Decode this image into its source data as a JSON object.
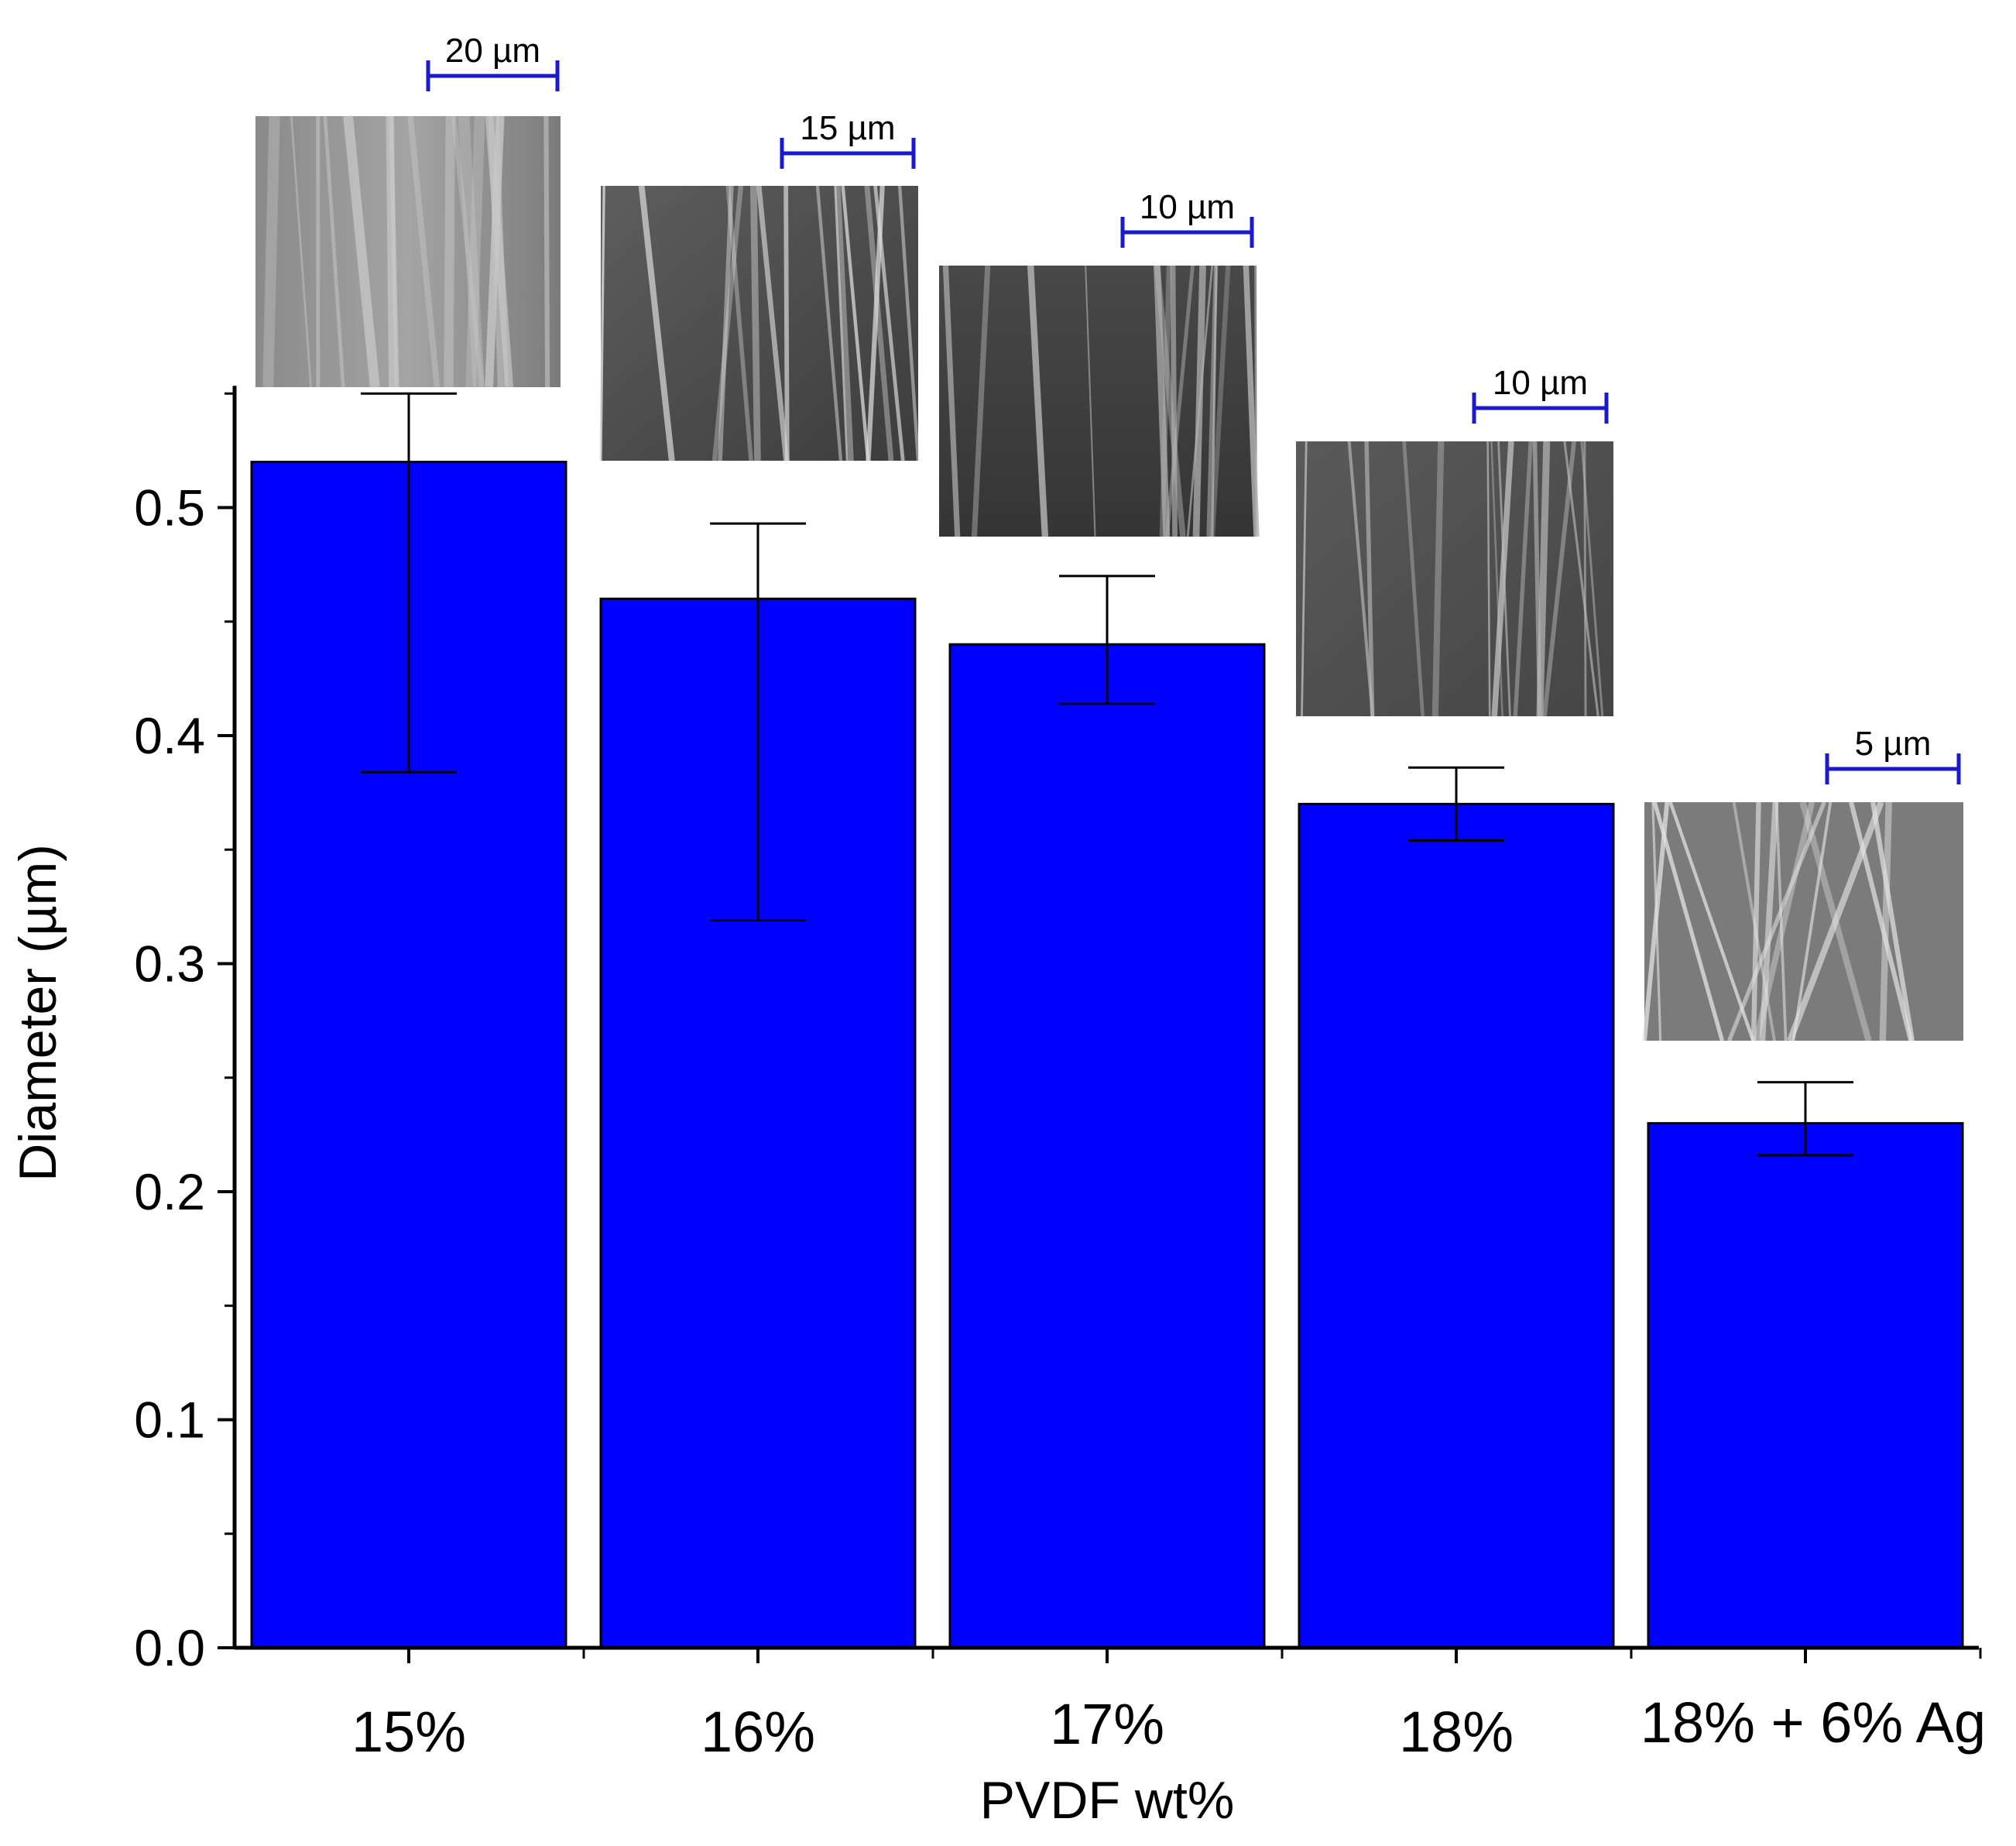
{
  "chart_data": {
    "type": "bar",
    "title": "",
    "xlabel": "PVDF wt%",
    "ylabel": "Diameter (µm)",
    "ylim": [
      0,
      0.55
    ],
    "yticks": [
      "0.0",
      "0.1",
      "0.2",
      "0.3",
      "0.4",
      "0.5"
    ],
    "categories": [
      "15%",
      "16%",
      "17%",
      "18%",
      "18% + 6% Ag"
    ],
    "values": [
      0.52,
      0.46,
      0.44,
      0.37,
      0.23
    ],
    "error_upper": [
      0.55,
      0.493,
      0.47,
      0.386,
      0.248
    ],
    "error_lower": [
      0.384,
      0.319,
      0.414,
      0.354,
      0.216
    ],
    "bar_color": "#0000ff",
    "scale_bar_color": "#1a1acc",
    "insets": [
      {
        "category": "15%",
        "scale_bar": "20 µm",
        "kind": "SEM micrograph"
      },
      {
        "category": "16%",
        "scale_bar": "15 µm",
        "kind": "SEM micrograph"
      },
      {
        "category": "17%",
        "scale_bar": "10 µm",
        "kind": "SEM micrograph"
      },
      {
        "category": "18%",
        "scale_bar": "10 µm",
        "kind": "SEM micrograph"
      },
      {
        "category": "18% + 6% Ag",
        "scale_bar": "5 µm",
        "kind": "SEM micrograph"
      }
    ]
  }
}
